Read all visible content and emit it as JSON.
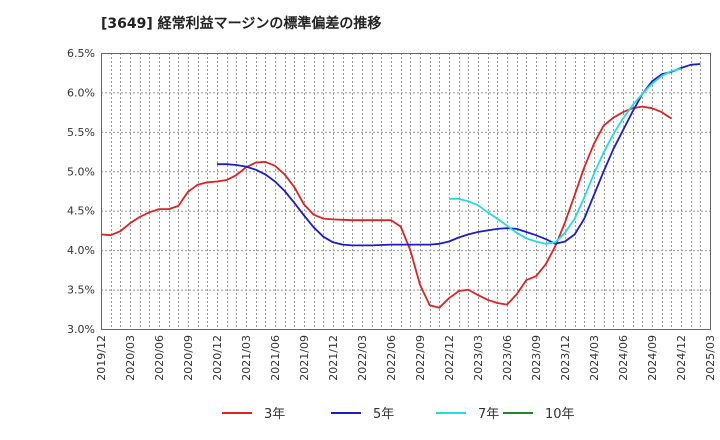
{
  "chart_data": {
    "type": "line",
    "title": "[3649]  経常利益マージンの標準偏差の推移",
    "xlabel": "",
    "ylabel": "",
    "ylim": [
      3.0,
      6.5
    ],
    "yticks": [
      "3.0%",
      "3.5%",
      "4.0%",
      "4.5%",
      "5.0%",
      "5.5%",
      "6.0%",
      "6.5%"
    ],
    "yticks_values": [
      3.0,
      3.5,
      4.0,
      4.5,
      5.0,
      5.5,
      6.0,
      6.5
    ],
    "xticks": [
      "2019/12",
      "2020/03",
      "2020/06",
      "2020/09",
      "2020/12",
      "2021/03",
      "2021/06",
      "2021/09",
      "2021/12",
      "2022/03",
      "2022/06",
      "2022/09",
      "2022/12",
      "2023/03",
      "2023/06",
      "2023/09",
      "2023/12",
      "2024/03",
      "2024/06",
      "2024/09",
      "2024/12",
      "2025/03"
    ],
    "grid": true,
    "legend_position": "bottom",
    "series": [
      {
        "name": "3年",
        "color": "#dd2222",
        "start_index": 0,
        "values": [
          4.2,
          4.19,
          4.24,
          4.34,
          4.42,
          4.48,
          4.52,
          4.52,
          4.56,
          4.74,
          4.83,
          4.86,
          4.87,
          4.89,
          4.95,
          5.05,
          5.11,
          5.12,
          5.07,
          4.96,
          4.8,
          4.58,
          4.45,
          4.4,
          4.39,
          4.385,
          4.38,
          4.38,
          4.38,
          4.38,
          4.38,
          4.3,
          4.0,
          3.56,
          3.3,
          3.27,
          3.39,
          3.48,
          3.5,
          3.43,
          3.37,
          3.33,
          3.31,
          3.44,
          3.62,
          3.67,
          3.82,
          4.05,
          4.35,
          4.7,
          5.05,
          5.35,
          5.58,
          5.68,
          5.75,
          5.8,
          5.82,
          5.8,
          5.75,
          5.67
        ]
      },
      {
        "name": "5年",
        "color": "#1c1cc8",
        "start_index": 12,
        "values": [
          5.09,
          5.09,
          5.08,
          5.06,
          5.02,
          4.96,
          4.87,
          4.75,
          4.6,
          4.44,
          4.29,
          4.17,
          4.1,
          4.07,
          4.06,
          4.06,
          4.06,
          4.065,
          4.07,
          4.07,
          4.07,
          4.07,
          4.07,
          4.08,
          4.11,
          4.16,
          4.2,
          4.23,
          4.25,
          4.27,
          4.28,
          4.27,
          4.23,
          4.19,
          4.14,
          4.08,
          4.11,
          4.2,
          4.4,
          4.7,
          5.0,
          5.28,
          5.52,
          5.76,
          5.98,
          6.14,
          6.23,
          6.26,
          6.31,
          6.35,
          6.36
        ]
      },
      {
        "name": "7年",
        "color": "#22dddd",
        "start_index": 36,
        "values": [
          4.65,
          4.65,
          4.62,
          4.57,
          4.48,
          4.4,
          4.31,
          4.22,
          4.15,
          4.11,
          4.08,
          4.1,
          4.22,
          4.4,
          4.67,
          4.97,
          5.24,
          5.47,
          5.67,
          5.84,
          5.98,
          6.11,
          6.21,
          6.27,
          6.3
        ]
      },
      {
        "name": "10年",
        "color": "#228822",
        "start_index": 0,
        "values": []
      }
    ]
  }
}
